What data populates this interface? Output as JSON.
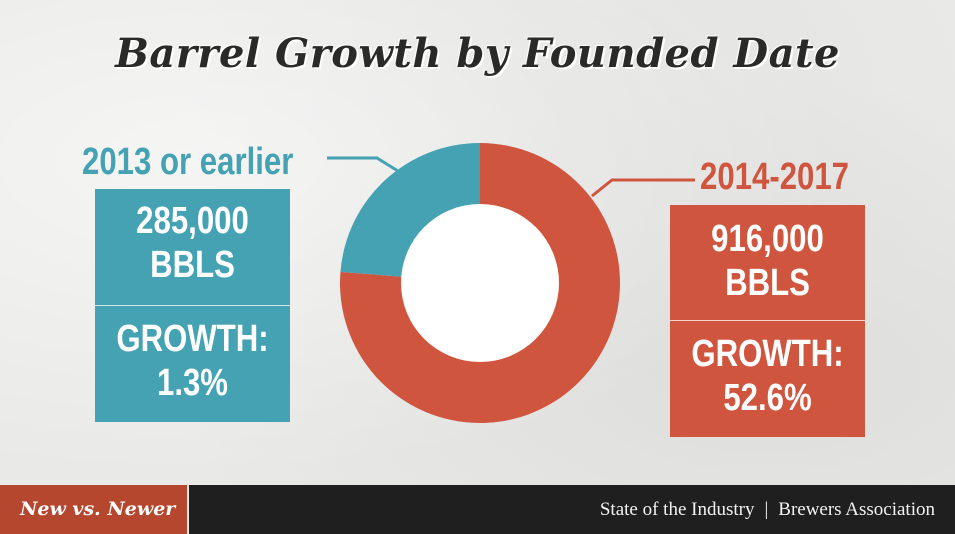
{
  "title": "Barrel Growth by Founded Date",
  "footer": {
    "tag": "New vs. Newer",
    "source": "State of the Industry",
    "separator": "|",
    "organization": "Brewers Association"
  },
  "colors": {
    "teal": "#44a2b3",
    "red": "#d0553f",
    "footer_bg": "#1f1f1f",
    "footer_tag": "#b5472f"
  },
  "groups": [
    {
      "label": "2013 or earlier",
      "barrels_line1": "285,000",
      "barrels_line2": "BBLS",
      "growth_line1": "GROWTH:",
      "growth_line2": "1.3%"
    },
    {
      "label": "2014-2017",
      "barrels_line1": "916,000",
      "barrels_line2": "BBLS",
      "growth_line1": "GROWTH:",
      "growth_line2": "52.6%"
    }
  ],
  "chart_data": {
    "type": "pie",
    "title": "Barrel Growth by Founded Date",
    "donut": true,
    "categories": [
      "2014-2017",
      "2013 or earlier"
    ],
    "values": [
      916000,
      285000
    ],
    "unit": "BBLS",
    "growth_percent": [
      52.6,
      1.3
    ],
    "colors": [
      "#d0553f",
      "#44a2b3"
    ],
    "start_angle_deg": 0,
    "direction": "clockwise"
  }
}
